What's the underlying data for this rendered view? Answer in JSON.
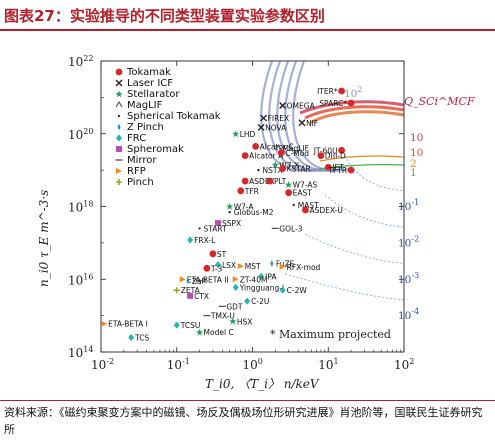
{
  "header": {
    "title": "图表27：实验推导的不同类型装置实验参数区别"
  },
  "footer": {
    "source": "资料来源：《磁约束聚变方案中的磁镜、场反及偶极场位形研究进展》肖池阶等，国联民生证券研究所"
  },
  "chart_data": {
    "type": "scatter",
    "x_scale": "log",
    "y_scale": "log",
    "xlim": [
      0.01,
      100
    ],
    "ylim": [
      100000000000000.0,
      1e+22
    ],
    "xlabel": "T_i0, 〈T_i〉 n/keV",
    "ylabel": "n_i0 τ_E m^-3·s",
    "x_ticks": [
      "10^-2",
      "10^-1",
      "10^0",
      "10^1",
      "10^2"
    ],
    "y_ticks": [
      "10^14",
      "10^16",
      "10^18",
      "10^20",
      "10^22"
    ],
    "legend": [
      {
        "name": "Tokamak",
        "marker": "circle",
        "color": "#d62828"
      },
      {
        "name": "Laser ICF",
        "marker": "x",
        "color": "#222222"
      },
      {
        "name": "Stellarator",
        "marker": "star",
        "color": "#22a060"
      },
      {
        "name": "MagLIF",
        "marker": "caret",
        "color": "#555555"
      },
      {
        "name": "Spherical Tokamak",
        "marker": "none",
        "color": "#333333"
      },
      {
        "name": "Z Pinch",
        "marker": "diamond-small",
        "color": "#2b8fcf"
      },
      {
        "name": "FRC",
        "marker": "diamond",
        "color": "#1fb5b0"
      },
      {
        "name": "Spheromak",
        "marker": "square",
        "color": "#b84fb0"
      },
      {
        "name": "Mirror",
        "marker": "dash",
        "color": "#555555"
      },
      {
        "name": "RFP",
        "marker": "triangle",
        "color": "#f08a1c"
      },
      {
        "name": "Pinch",
        "marker": "cross",
        "color": "#9aa62a"
      }
    ],
    "contours": [
      {
        "label": "10^2",
        "ncurves": 5,
        "color": "#8a94c8"
      },
      {
        "label": "10",
        "color": "#d0344a"
      },
      {
        "label": "10",
        "color": "#e5452b"
      },
      {
        "label": "2",
        "color": "#e58a1b"
      },
      {
        "label": "1",
        "color": "#4caf50"
      },
      {
        "label": "10^-1",
        "color": "#2f4ea8"
      },
      {
        "label": "10^-2",
        "color": "#2f4ea8"
      },
      {
        "label": "10^-3",
        "color": "#2f4ea8"
      },
      {
        "label": "10^-4",
        "color": "#2f4ea8"
      }
    ],
    "contour_title": "Q_SCi^MCF",
    "footnote": "* Maximum projected",
    "points": [
      {
        "label": "ITER*",
        "x": 15,
        "y": 1.5e+21,
        "type": "Tokamak"
      },
      {
        "label": "SPARC*",
        "x": 20,
        "y": 7e+20,
        "type": "Tokamak"
      },
      {
        "label": "NIF",
        "x": 4.5,
        "y": 2e+20,
        "type": "Laser ICF"
      },
      {
        "label": "OMEGA",
        "x": 2.5,
        "y": 6e+20,
        "type": "Laser ICF"
      },
      {
        "label": "NOVA",
        "x": 1.3,
        "y": 1.5e+20,
        "type": "Laser ICF"
      },
      {
        "label": "FIREX",
        "x": 1.4,
        "y": 2.7e+20,
        "type": "Laser ICF"
      },
      {
        "label": "LHD",
        "x": 0.6,
        "y": 1e+20,
        "type": "Stellarator"
      },
      {
        "label": "Alcator C",
        "x": 1.1,
        "y": 4.5e+19,
        "type": "Tokamak"
      },
      {
        "label": "Alcator A",
        "x": 0.8,
        "y": 2.5e+19,
        "type": "Tokamak"
      },
      {
        "label": "MagLIF",
        "x": 2.2,
        "y": 4e+19,
        "type": "MagLIF"
      },
      {
        "label": "NSTX",
        "x": 1.2,
        "y": 1e+19,
        "type": "Spherical Tokamak"
      },
      {
        "label": "W7-X",
        "x": 2,
        "y": 1.4e+19,
        "type": "Stellarator"
      },
      {
        "label": "C-Mod",
        "x": 2.4,
        "y": 3e+19,
        "type": "Tokamak"
      },
      {
        "label": "KSTAR",
        "x": 2.5,
        "y": 1.1e+19,
        "type": "Tokamak"
      },
      {
        "label": "ASDEX",
        "x": 0.8,
        "y": 5e+18,
        "type": "Tokamak"
      },
      {
        "label": "TFR",
        "x": 0.7,
        "y": 2.7e+18,
        "type": "Tokamak"
      },
      {
        "label": "PLT",
        "x": 1.7,
        "y": 5e+18,
        "type": "Tokamak"
      },
      {
        "label": "W7-AS",
        "x": 3,
        "y": 4e+18,
        "type": "Stellarator"
      },
      {
        "label": "EAST",
        "x": 3,
        "y": 2.4e+18,
        "type": "Tokamak"
      },
      {
        "label": "MAST",
        "x": 3.5,
        "y": 1.1e+18,
        "type": "Spherical Tokamak"
      },
      {
        "label": "ASDEX-U",
        "x": 5,
        "y": 8e+17,
        "type": "Tokamak"
      },
      {
        "label": "W7-A",
        "x": 0.5,
        "y": 1e+18,
        "type": "Stellarator"
      },
      {
        "label": "Globus-M2",
        "x": 0.5,
        "y": 7e+17,
        "type": "Spherical Tokamak"
      },
      {
        "label": "SSPX",
        "x": 0.35,
        "y": 3.5e+17,
        "type": "Spheromak"
      },
      {
        "label": "GOL-3",
        "x": 2,
        "y": 2.5e+17,
        "type": "Mirror"
      },
      {
        "label": "START",
        "x": 0.2,
        "y": 2.5e+17,
        "type": "Spherical Tokamak"
      },
      {
        "label": "FRX-L",
        "x": 0.15,
        "y": 1.2e+17,
        "type": "FRC"
      },
      {
        "label": "ST",
        "x": 0.3,
        "y": 5e+16,
        "type": "Tokamak"
      },
      {
        "label": "LSX",
        "x": 0.35,
        "y": 2.5e+16,
        "type": "FRC"
      },
      {
        "label": "MST",
        "x": 0.7,
        "y": 2.3e+16,
        "type": "RFP"
      },
      {
        "label": "T-3",
        "x": 0.25,
        "y": 2e+16,
        "type": "Tokamak"
      },
      {
        "label": "FuZE",
        "x": 1.8,
        "y": 2.7e+16,
        "type": "Z Pinch"
      },
      {
        "label": "RFX-mod",
        "x": 2.5,
        "y": 2.2e+16,
        "type": "RFP"
      },
      {
        "label": "IPA",
        "x": 1.3,
        "y": 1.2e+16,
        "type": "FRC"
      },
      {
        "label": "ZT-40M",
        "x": 0.6,
        "y": 1e+16,
        "type": "RFP"
      },
      {
        "label": "ETA-BETA II",
        "x": 0.12,
        "y": 1e+16,
        "type": "RFP"
      },
      {
        "label": "ZaP",
        "x": 0.14,
        "y": 9000000000000000.0,
        "type": "Z Pinch"
      },
      {
        "label": "Yingguang-I",
        "x": 0.6,
        "y": 6000000000000000.0,
        "type": "FRC"
      },
      {
        "label": "C-2W",
        "x": 2.5,
        "y": 5000000000000000.0,
        "type": "FRC"
      },
      {
        "label": "ZETA",
        "x": 0.1,
        "y": 5000000000000000.0,
        "type": "Pinch"
      },
      {
        "label": "CTX",
        "x": 0.15,
        "y": 3500000000000000.0,
        "type": "Spheromak"
      },
      {
        "label": "C-2U",
        "x": 0.85,
        "y": 2500000000000000.0,
        "type": "FRC"
      },
      {
        "label": "GDT",
        "x": 0.4,
        "y": 1800000000000000.0,
        "type": "Mirror"
      },
      {
        "label": "TMX-U",
        "x": 0.25,
        "y": 1000000000000000.0,
        "type": "Mirror"
      },
      {
        "label": "HSX",
        "x": 0.55,
        "y": 700000000000000.0,
        "type": "Stellarator"
      },
      {
        "label": "ETA-BETA I",
        "x": 0.011,
        "y": 600000000000000.0,
        "type": "RFP"
      },
      {
        "label": "TCSU",
        "x": 0.1,
        "y": 550000000000000.0,
        "type": "FRC"
      },
      {
        "label": "Model C",
        "x": 0.2,
        "y": 350000000000000.0,
        "type": "Stellarator"
      },
      {
        "label": "TCS",
        "x": 0.025,
        "y": 250000000000000.0,
        "type": "FRC"
      },
      {
        "label": "JT-60U",
        "x": 15,
        "y": 3.5e+19,
        "type": "Tokamak"
      },
      {
        "label": "DIII-D",
        "x": 8,
        "y": 2.5e+19,
        "type": "Tokamak"
      },
      {
        "label": "JET",
        "x": 10,
        "y": 1.2e+19,
        "type": "Tokamak"
      },
      {
        "label": "TFTR",
        "x": 20,
        "y": 1e+19,
        "type": "Tokamak"
      }
    ]
  }
}
